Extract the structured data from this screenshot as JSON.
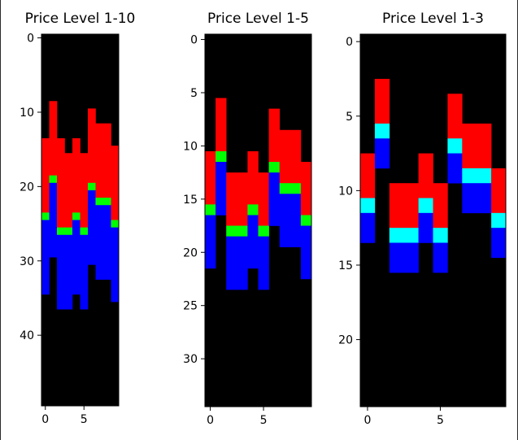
{
  "chart_data": [
    {
      "type": "heatmap",
      "title": "Price Level 1-10",
      "rows": 50,
      "cols": 10,
      "xticks": [
        0,
        5
      ],
      "yticks": [
        0,
        10,
        20,
        30,
        40
      ],
      "legend": "none",
      "grid": false,
      "colors": {
        "background": "#000000",
        "0": "#ff0000",
        "1": "#00ff00",
        "2": "#0000ff"
      },
      "columns": [
        {
          "col": 0,
          "segments": [
            [
              14,
              23,
              0
            ],
            [
              24,
              24,
              1
            ],
            [
              25,
              34,
              2
            ]
          ]
        },
        {
          "col": 1,
          "segments": [
            [
              9,
              18,
              0
            ],
            [
              19,
              19,
              1
            ],
            [
              20,
              29,
              2
            ]
          ]
        },
        {
          "col": 2,
          "segments": [
            [
              14,
              25,
              0
            ],
            [
              26,
              26,
              1
            ],
            [
              27,
              36,
              2
            ]
          ]
        },
        {
          "col": 3,
          "segments": [
            [
              16,
              25,
              0
            ],
            [
              26,
              26,
              1
            ],
            [
              27,
              36,
              2
            ]
          ]
        },
        {
          "col": 4,
          "segments": [
            [
              14,
              23,
              0
            ],
            [
              24,
              24,
              1
            ],
            [
              25,
              34,
              2
            ]
          ]
        },
        {
          "col": 5,
          "segments": [
            [
              16,
              25,
              0
            ],
            [
              26,
              26,
              1
            ],
            [
              27,
              36,
              2
            ]
          ]
        },
        {
          "col": 6,
          "segments": [
            [
              10,
              19,
              0
            ],
            [
              20,
              20,
              1
            ],
            [
              21,
              30,
              2
            ]
          ]
        },
        {
          "col": 7,
          "segments": [
            [
              12,
              21,
              0
            ],
            [
              22,
              22,
              1
            ],
            [
              23,
              32,
              2
            ]
          ]
        },
        {
          "col": 8,
          "segments": [
            [
              12,
              21,
              0
            ],
            [
              22,
              22,
              1
            ],
            [
              23,
              32,
              2
            ]
          ]
        },
        {
          "col": 9,
          "segments": [
            [
              15,
              24,
              0
            ],
            [
              25,
              25,
              1
            ],
            [
              26,
              35,
              2
            ]
          ]
        }
      ]
    },
    {
      "type": "heatmap",
      "title": "Price Level 1-5",
      "rows": 35,
      "cols": 10,
      "xticks": [
        0,
        5
      ],
      "yticks": [
        0,
        5,
        10,
        15,
        20,
        25,
        30
      ],
      "legend": "none",
      "grid": false,
      "colors": {
        "background": "#000000",
        "0": "#ff0000",
        "1": "#00ff00",
        "2": "#0000ff"
      },
      "columns": [
        {
          "col": 0,
          "segments": [
            [
              11,
              15,
              0
            ],
            [
              16,
              16,
              1
            ],
            [
              17,
              21,
              2
            ]
          ]
        },
        {
          "col": 1,
          "segments": [
            [
              6,
              10,
              0
            ],
            [
              11,
              11,
              1
            ],
            [
              12,
              16,
              2
            ]
          ]
        },
        {
          "col": 2,
          "segments": [
            [
              13,
              17,
              0
            ],
            [
              18,
              18,
              1
            ],
            [
              19,
              23,
              2
            ]
          ]
        },
        {
          "col": 3,
          "segments": [
            [
              13,
              17,
              0
            ],
            [
              18,
              18,
              1
            ],
            [
              19,
              23,
              2
            ]
          ]
        },
        {
          "col": 4,
          "segments": [
            [
              11,
              15,
              0
            ],
            [
              16,
              16,
              1
            ],
            [
              17,
              21,
              2
            ]
          ]
        },
        {
          "col": 5,
          "segments": [
            [
              13,
              17,
              0
            ],
            [
              18,
              18,
              1
            ],
            [
              19,
              23,
              2
            ]
          ]
        },
        {
          "col": 6,
          "segments": [
            [
              7,
              11,
              0
            ],
            [
              12,
              12,
              1
            ],
            [
              13,
              17,
              2
            ]
          ]
        },
        {
          "col": 7,
          "segments": [
            [
              9,
              13,
              0
            ],
            [
              14,
              14,
              1
            ],
            [
              15,
              19,
              2
            ]
          ]
        },
        {
          "col": 8,
          "segments": [
            [
              9,
              13,
              0
            ],
            [
              14,
              14,
              1
            ],
            [
              15,
              19,
              2
            ]
          ]
        },
        {
          "col": 9,
          "segments": [
            [
              12,
              16,
              0
            ],
            [
              17,
              17,
              1
            ],
            [
              18,
              22,
              2
            ]
          ]
        }
      ]
    },
    {
      "type": "heatmap",
      "title": "Price Level 1-3",
      "rows": 25,
      "cols": 10,
      "xticks": [
        0,
        5
      ],
      "yticks": [
        0,
        5,
        10,
        15,
        20
      ],
      "legend": "none",
      "grid": false,
      "colors": {
        "background": "#000000",
        "0": "#ff0000",
        "1": "#00ffff",
        "2": "#0000ff"
      },
      "columns": [
        {
          "col": 0,
          "segments": [
            [
              8,
              10,
              0
            ],
            [
              11,
              11,
              1
            ],
            [
              12,
              13,
              2
            ]
          ]
        },
        {
          "col": 1,
          "segments": [
            [
              3,
              5,
              0
            ],
            [
              6,
              6,
              1
            ],
            [
              7,
              8,
              2
            ]
          ]
        },
        {
          "col": 2,
          "segments": [
            [
              10,
              12,
              0
            ],
            [
              13,
              13,
              1
            ],
            [
              14,
              15,
              2
            ]
          ]
        },
        {
          "col": 3,
          "segments": [
            [
              10,
              12,
              0
            ],
            [
              13,
              13,
              1
            ],
            [
              14,
              15,
              2
            ]
          ]
        },
        {
          "col": 4,
          "segments": [
            [
              8,
              10,
              0
            ],
            [
              11,
              11,
              1
            ],
            [
              12,
              13,
              2
            ]
          ]
        },
        {
          "col": 5,
          "segments": [
            [
              10,
              12,
              0
            ],
            [
              13,
              13,
              1
            ],
            [
              14,
              15,
              2
            ]
          ]
        },
        {
          "col": 6,
          "segments": [
            [
              4,
              6,
              0
            ],
            [
              7,
              7,
              1
            ],
            [
              8,
              9,
              2
            ]
          ]
        },
        {
          "col": 7,
          "segments": [
            [
              6,
              8,
              0
            ],
            [
              9,
              9,
              1
            ],
            [
              10,
              11,
              2
            ]
          ]
        },
        {
          "col": 8,
          "segments": [
            [
              6,
              8,
              0
            ],
            [
              9,
              9,
              1
            ],
            [
              10,
              11,
              2
            ]
          ]
        },
        {
          "col": 9,
          "segments": [
            [
              9,
              11,
              0
            ],
            [
              12,
              12,
              1
            ],
            [
              13,
              14,
              2
            ]
          ]
        }
      ]
    }
  ]
}
